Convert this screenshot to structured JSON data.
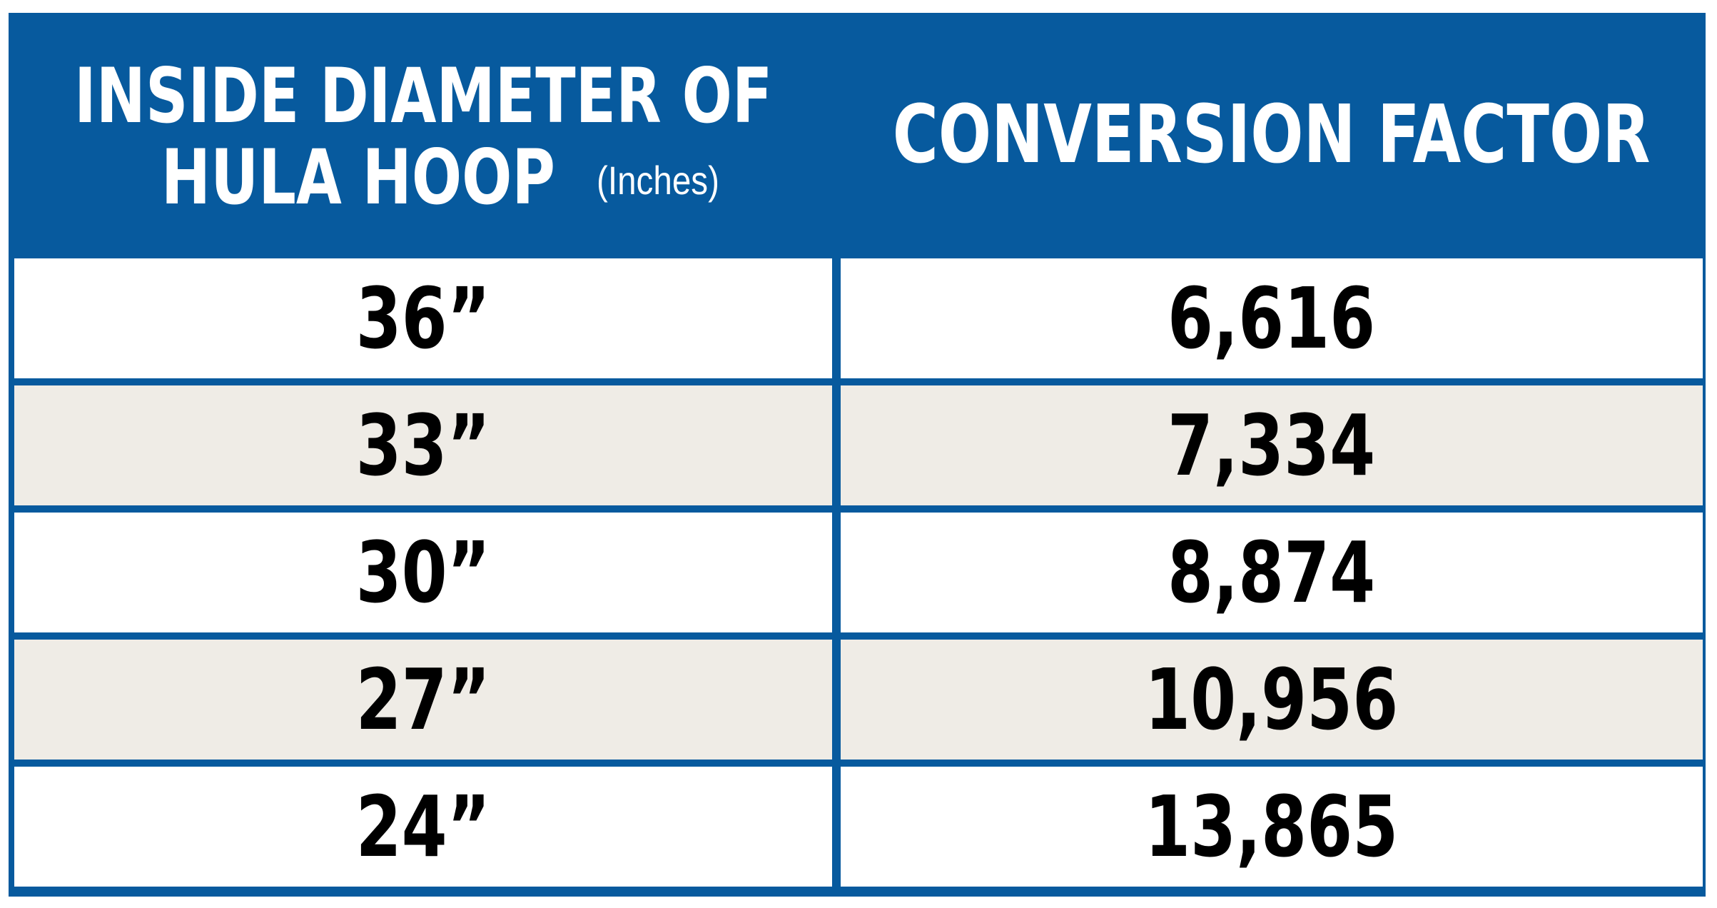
{
  "headers": {
    "diameter_line1": "INSIDE DIAMETER OF",
    "diameter_line2": "HULA HOOP",
    "diameter_unit": "(Inches)",
    "factor": "CONVERSION FACTOR"
  },
  "rows": [
    {
      "diameter": "36”",
      "factor": "6,616"
    },
    {
      "diameter": "33”",
      "factor": "7,334"
    },
    {
      "diameter": "30”",
      "factor": "8,874"
    },
    {
      "diameter": "27”",
      "factor": "10,956"
    },
    {
      "diameter": "24”",
      "factor": "13,865"
    }
  ],
  "colors": {
    "header_blue": "#075a9e",
    "row_white": "#ffffff",
    "row_gray": "#efece6",
    "text_dark": "#000000"
  }
}
